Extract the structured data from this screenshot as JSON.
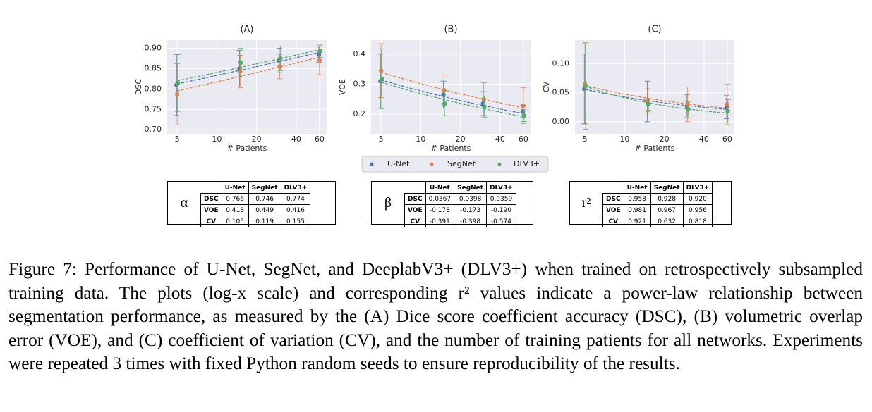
{
  "chart_data": [
    {
      "type": "errorbar",
      "title": "(A)",
      "x_label": "# Patients",
      "y_label": "DSC",
      "log_x": true,
      "grid": true,
      "x": [
        5,
        15,
        30,
        60
      ],
      "xlim": [
        4.2,
        68
      ],
      "xticks": [
        5,
        10,
        20,
        40,
        60
      ],
      "ylim": [
        0.69,
        0.92
      ],
      "yticks": [
        {
          "value": 0.9,
          "label": "0.90"
        },
        {
          "value": 0.85,
          "label": "0.85"
        },
        {
          "value": 0.8,
          "label": "0.80"
        },
        {
          "value": 0.75,
          "label": "0.75"
        },
        {
          "value": 0.7,
          "label": "0.70"
        }
      ],
      "series": [
        {
          "name": "U-Net",
          "color": "#4c72b0",
          "values": [
            0.81,
            0.85,
            0.87,
            0.885
          ],
          "errors": [
            0.075,
            0.045,
            0.03,
            0.02
          ]
        },
        {
          "name": "SegNet",
          "color": "#dd8452",
          "values": [
            0.787,
            0.843,
            0.855,
            0.87
          ],
          "errors": [
            0.075,
            0.04,
            0.03,
            0.035
          ]
        },
        {
          "name": "DLV3+",
          "color": "#55a868",
          "values": [
            0.815,
            0.865,
            0.875,
            0.893
          ],
          "errors": [
            0.07,
            0.035,
            0.03,
            0.015
          ]
        }
      ]
    },
    {
      "type": "errorbar",
      "title": "(B)",
      "x_label": "# Patients",
      "y_label": "VOE",
      "log_x": true,
      "grid": true,
      "legend": "below",
      "x": [
        5,
        15,
        30,
        60
      ],
      "xlim": [
        4.2,
        68
      ],
      "xticks": [
        5,
        10,
        20,
        40,
        60
      ],
      "ylim": [
        0.134,
        0.447
      ],
      "yticks": [
        0.4,
        0.3,
        0.2
      ],
      "series": [
        {
          "name": "U-Net",
          "color": "#4c72b0",
          "values": [
            0.31,
            0.265,
            0.235,
            0.208
          ],
          "errors": [
            0.09,
            0.045,
            0.04,
            0.02
          ]
        },
        {
          "name": "SegNet",
          "color": "#dd8452",
          "values": [
            0.345,
            0.28,
            0.25,
            0.228
          ],
          "errors": [
            0.09,
            0.05,
            0.055,
            0.06
          ]
        },
        {
          "name": "DLV3+",
          "color": "#55a868",
          "values": [
            0.318,
            0.235,
            0.225,
            0.195
          ],
          "errors": [
            0.1,
            0.04,
            0.035,
            0.02
          ]
        }
      ]
    },
    {
      "type": "errorbar",
      "title": "(C)",
      "x_label": "# Patients",
      "y_label": "CV",
      "log_x": true,
      "grid": true,
      "x": [
        5,
        15,
        30,
        60
      ],
      "xlim": [
        4.2,
        68
      ],
      "xticks": [
        5,
        10,
        20,
        40,
        60
      ],
      "ylim": [
        -0.021,
        0.141
      ],
      "yticks": [
        {
          "value": 0.1,
          "label": "0.10"
        },
        {
          "value": 0.05,
          "label": "0.05"
        },
        {
          "value": 0,
          "label": "0.00"
        }
      ],
      "series": [
        {
          "name": "U-Net",
          "color": "#4c72b0",
          "values": [
            0.057,
            0.035,
            0.027,
            0.025
          ],
          "errors": [
            0.06,
            0.035,
            0.02,
            0.02
          ]
        },
        {
          "name": "SegNet",
          "color": "#dd8452",
          "values": [
            0.065,
            0.037,
            0.03,
            0.03
          ],
          "errors": [
            0.07,
            0.02,
            0.03,
            0.035
          ]
        },
        {
          "name": "DLV3+",
          "color": "#55a868",
          "values": [
            0.062,
            0.03,
            0.022,
            0.018
          ],
          "errors": [
            0.075,
            0.01,
            0.012,
            0.02
          ]
        }
      ]
    }
  ],
  "tables": [
    {
      "symbol": "α",
      "columns": [
        "U-Net",
        "SegNet",
        "DLV3+"
      ],
      "rows": [
        {
          "label": "DSC",
          "values": [
            "0.766",
            "0.746",
            "0.774"
          ]
        },
        {
          "label": "VOE",
          "values": [
            "0.418",
            "0.449",
            "0.416"
          ]
        },
        {
          "label": "CV",
          "values": [
            "0.105",
            "0.119",
            "0.155"
          ]
        }
      ]
    },
    {
      "symbol": "β",
      "columns": [
        "U-Net",
        "SegNet",
        "DLV3+"
      ],
      "rows": [
        {
          "label": "DSC",
          "values": [
            "0.0367",
            "0.0398",
            "0.0359"
          ]
        },
        {
          "label": "VOE",
          "values": [
            "-0.178",
            "-0.173",
            "-0.190"
          ]
        },
        {
          "label": "CV",
          "values": [
            "-0.391",
            "-0.398",
            "-0.574"
          ]
        }
      ]
    },
    {
      "symbol": "r²",
      "columns": [
        "U-Net",
        "SegNet",
        "DLV3+"
      ],
      "rows": [
        {
          "label": "DSC",
          "values": [
            "0.958",
            "0.928",
            "0.920"
          ]
        },
        {
          "label": "VOE",
          "values": [
            "0.981",
            "0.967",
            "0.956"
          ]
        },
        {
          "label": "CV",
          "values": [
            "0.921",
            "0.632",
            "0.818"
          ]
        }
      ]
    }
  ],
  "caption": "Figure 7: Performance of U-Net, SegNet, and DeeplabV3+ (DLV3+) when trained on retrospectively subsampled training data. The plots (log-x scale) and corresponding r² values indicate a power-law relationship between segmentation performance, as measured by the (A) Dice score coefficient accuracy (DSC), (B) volumetric overlap error (VOE), and (C) coefficient of variation (CV), and the number of training patients for all networks. Experiments were repeated 3 times with fixed Python random seeds to ensure reproducibility of the results."
}
